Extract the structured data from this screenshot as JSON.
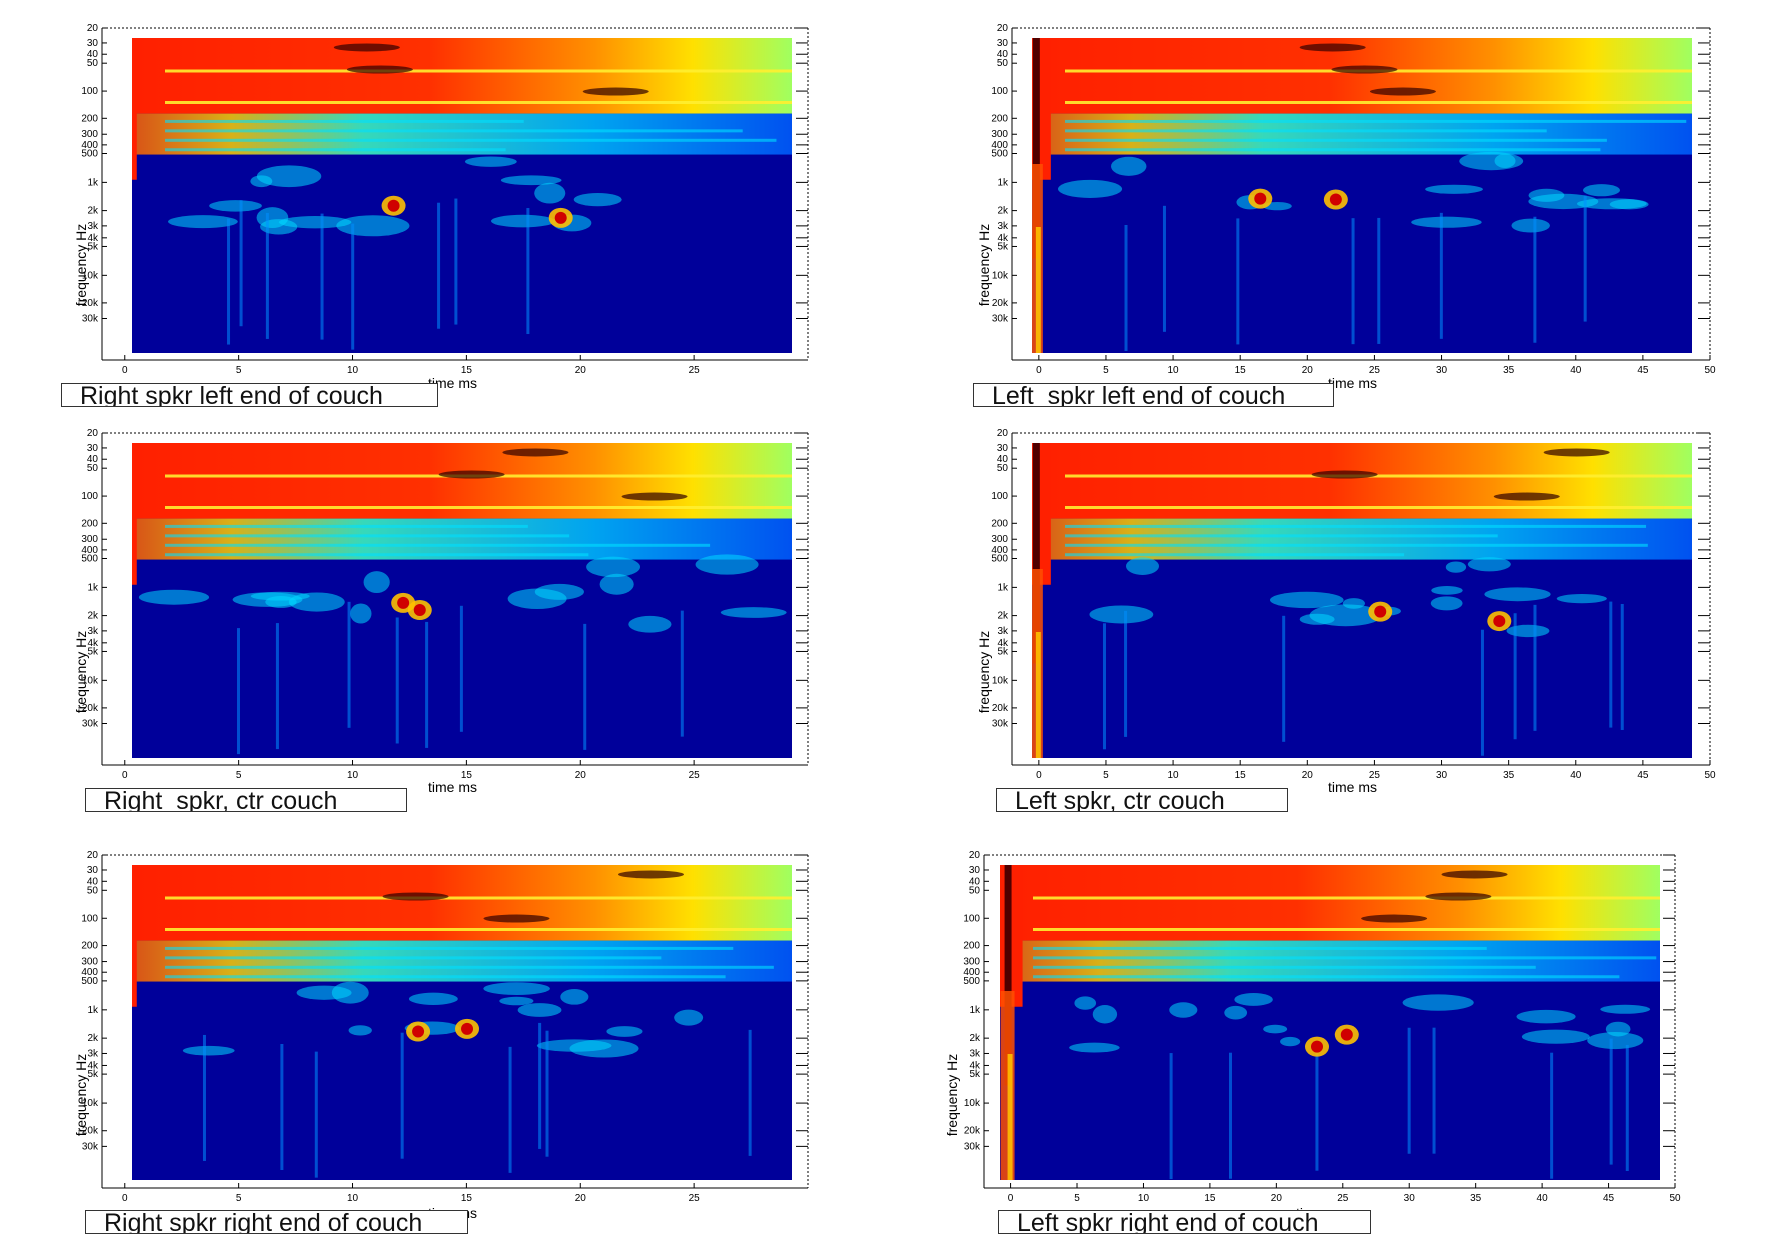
{
  "chart_data": [
    {
      "type": "heatmap",
      "caption": "Right spkr left end of couch",
      "xlabel": "time   ms",
      "ylabel": "frequency   Hz",
      "xlim": [
        -1,
        30
      ],
      "x_ticks": [
        0,
        5,
        10,
        15,
        20,
        25
      ],
      "y_ticks": [
        "20",
        "30",
        "40",
        "50",
        "100",
        "200",
        "300",
        "400",
        "500",
        "1k",
        "2k",
        "3k",
        "4k",
        "5k",
        "10k",
        "20k",
        "30k"
      ],
      "colormap": [
        "#00008f",
        "#0000ff",
        "#00ffff",
        "#ffff00",
        "#ff0000",
        "#800000",
        "#000000"
      ]
    },
    {
      "type": "heatmap",
      "caption": "Left  spkr left end of couch",
      "xlabel": "time   ms",
      "ylabel": "frequency   Hz",
      "xlim": [
        -2,
        50
      ],
      "x_ticks": [
        0,
        5,
        10,
        15,
        20,
        25,
        30,
        35,
        40,
        45,
        50
      ],
      "y_ticks": [
        "20",
        "30",
        "40",
        "50",
        "100",
        "200",
        "300",
        "400",
        "500",
        "1k",
        "2k",
        "3k",
        "4k",
        "5k",
        "10k",
        "20k",
        "30k"
      ],
      "colormap": [
        "#00008f",
        "#0000ff",
        "#00ffff",
        "#ffff00",
        "#ff0000",
        "#800000",
        "#000000"
      ]
    },
    {
      "type": "heatmap",
      "caption": "Right  spkr, ctr couch",
      "xlabel": "time   ms",
      "ylabel": "frequency   Hz",
      "xlim": [
        -1,
        30
      ],
      "x_ticks": [
        0,
        5,
        10,
        15,
        20,
        25
      ],
      "y_ticks": [
        "20",
        "30",
        "40",
        "50",
        "100",
        "200",
        "300",
        "400",
        "500",
        "1k",
        "2k",
        "3k",
        "4k",
        "5k",
        "10k",
        "20k",
        "30k"
      ],
      "colormap": [
        "#00008f",
        "#0000ff",
        "#00ffff",
        "#ffff00",
        "#ff0000",
        "#800000",
        "#000000"
      ]
    },
    {
      "type": "heatmap",
      "caption": "Left spkr, ctr couch",
      "xlabel": "time   ms",
      "ylabel": "frequency   Hz",
      "xlim": [
        -2,
        50
      ],
      "x_ticks": [
        0,
        5,
        10,
        15,
        20,
        25,
        30,
        35,
        40,
        45,
        50
      ],
      "y_ticks": [
        "20",
        "30",
        "40",
        "50",
        "100",
        "200",
        "300",
        "400",
        "500",
        "1k",
        "2k",
        "3k",
        "4k",
        "5k",
        "10k",
        "20k",
        "30k"
      ],
      "colormap": [
        "#00008f",
        "#0000ff",
        "#00ffff",
        "#ffff00",
        "#ff0000",
        "#800000",
        "#000000"
      ]
    },
    {
      "type": "heatmap",
      "caption": "Right spkr right end of couch",
      "xlabel": "time   ms",
      "ylabel": "frequency   Hz",
      "xlim": [
        -1,
        30
      ],
      "x_ticks": [
        0,
        5,
        10,
        15,
        20,
        25
      ],
      "y_ticks": [
        "20",
        "30",
        "40",
        "50",
        "100",
        "200",
        "300",
        "400",
        "500",
        "1k",
        "2k",
        "3k",
        "4k",
        "5k",
        "10k",
        "20k",
        "30k"
      ],
      "colormap": [
        "#00008f",
        "#0000ff",
        "#00ffff",
        "#ffff00",
        "#ff0000",
        "#800000",
        "#000000"
      ]
    },
    {
      "type": "heatmap",
      "caption": "Left spkr right end of couch",
      "xlabel": "time   ms",
      "ylabel": "frequency   Hz",
      "xlim": [
        -2,
        50
      ],
      "x_ticks": [
        0,
        5,
        10,
        15,
        20,
        25,
        30,
        35,
        40,
        45,
        50
      ],
      "y_ticks": [
        "20",
        "30",
        "40",
        "50",
        "100",
        "200",
        "300",
        "400",
        "500",
        "1k",
        "2k",
        "3k",
        "4k",
        "5k",
        "10k",
        "20k",
        "30k"
      ],
      "colormap": [
        "#00008f",
        "#0000ff",
        "#00ffff",
        "#ffff00",
        "#ff0000",
        "#800000",
        "#000000"
      ]
    }
  ]
}
